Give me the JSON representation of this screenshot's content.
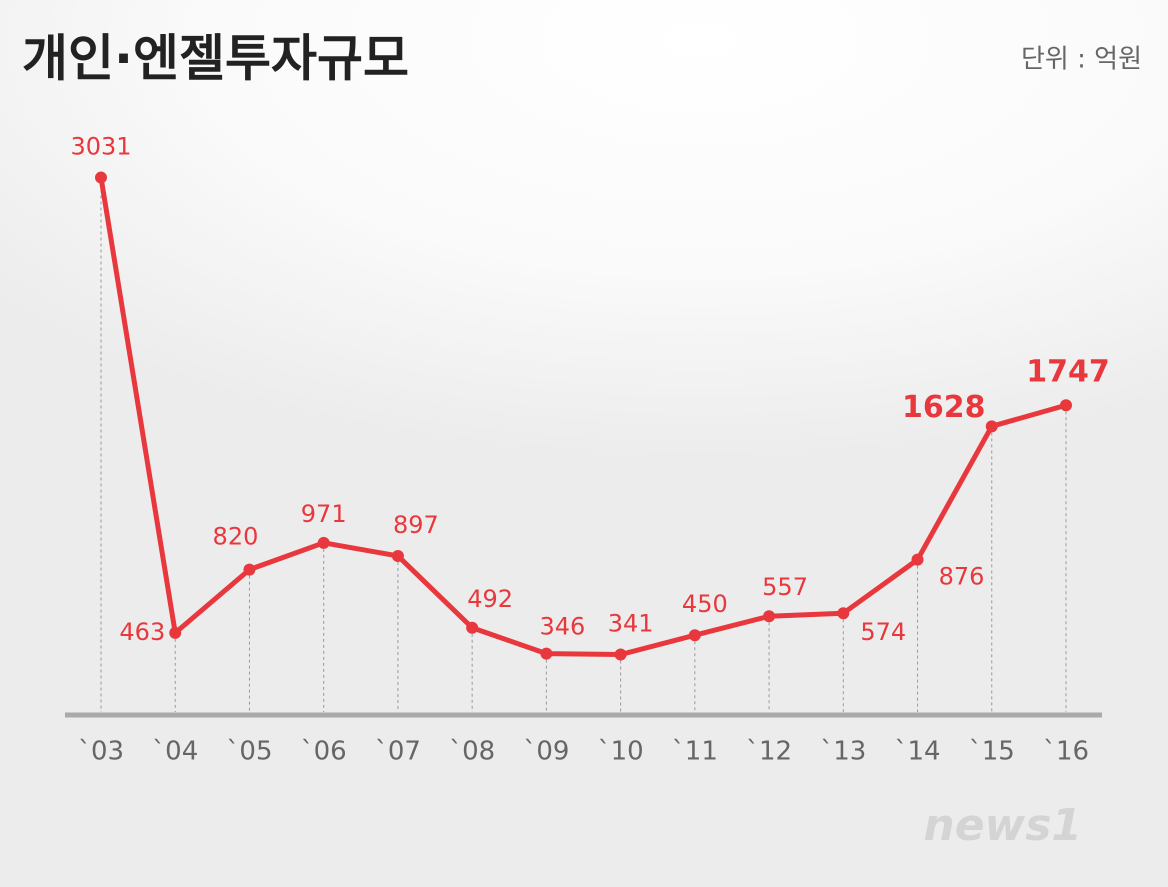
{
  "chart_data": {
    "type": "line",
    "title": "개인·엔젤투자규모",
    "unit_note": "단위 : 억원",
    "logo": "news1",
    "categories": [
      "`03",
      "`04",
      "`05",
      "`06",
      "`07",
      "`08",
      "`09",
      "`10",
      "`11",
      "`12",
      "`13",
      "`14",
      "`15",
      "`16"
    ],
    "values": [
      3031,
      463,
      820,
      971,
      897,
      492,
      346,
      341,
      450,
      557,
      574,
      876,
      1628,
      1747
    ],
    "color": "#e8383d",
    "ylim": [
      0,
      3500
    ]
  }
}
